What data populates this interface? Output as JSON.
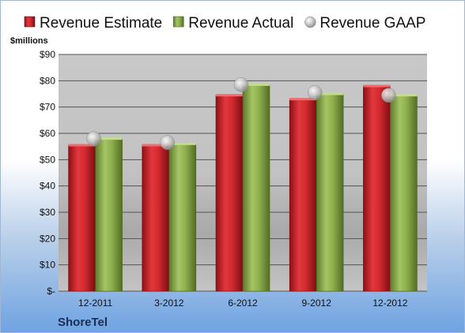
{
  "chart_data": {
    "type": "bar",
    "categories": [
      "12-2011",
      "3-2012",
      "6-2012",
      "9-2012",
      "12-2012"
    ],
    "series": [
      {
        "name": "Revenue Estimate",
        "kind": "bar",
        "color": "#d42a2f",
        "values": [
          55.5,
          55.5,
          74.5,
          73,
          78
        ]
      },
      {
        "name": "Revenue Actual",
        "kind": "bar",
        "color": "#8fb04e",
        "values": [
          58,
          56,
          78.5,
          75,
          74.5
        ]
      },
      {
        "name": "Revenue GAAP",
        "kind": "marker",
        "color": "#c6c6c6",
        "values": [
          58,
          56.5,
          78.5,
          75.5,
          74.5
        ]
      }
    ],
    "ylabel": "$millions",
    "ylim": [
      0,
      90
    ],
    "yticks": [
      0,
      10,
      20,
      30,
      40,
      50,
      60,
      70,
      80,
      90
    ],
    "ytick_labels": [
      "$-",
      "$10",
      "$20",
      "$30",
      "$40",
      "$50",
      "$60",
      "$70",
      "$80",
      "$90"
    ],
    "legend_position": "top",
    "grid": true
  },
  "footer": {
    "company": "ShoreTel"
  }
}
